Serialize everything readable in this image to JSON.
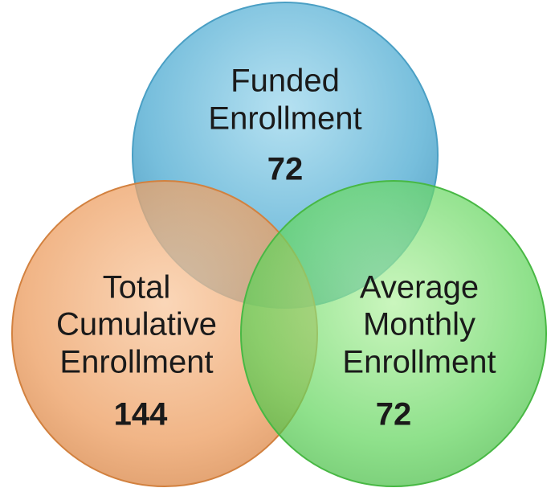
{
  "circles": [
    {
      "lines": [
        "Funded",
        "Enrollment"
      ],
      "value": 72
    },
    {
      "lines": [
        "Total",
        "Cumulative",
        "Enrollment"
      ],
      "value": 144
    },
    {
      "lines": [
        "Average",
        "Monthly",
        "Enrollment"
      ],
      "value": 72
    }
  ]
}
